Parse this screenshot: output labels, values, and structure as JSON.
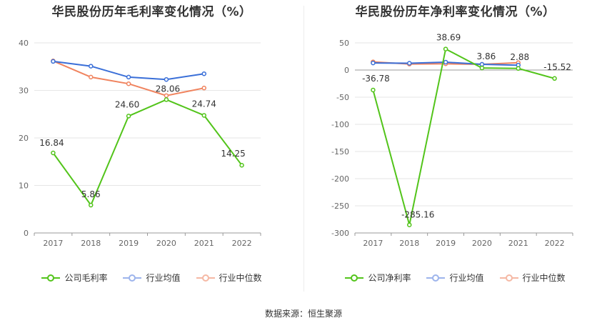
{
  "source_text": "数据来源：恒生聚源",
  "colors": {
    "company": "#52c41a",
    "industry_avg": "#3a6fd8",
    "industry_median": "#f0835e",
    "grid": "#e6e6e6",
    "axis": "#333333"
  },
  "legend_icons": [
    "line-circle-icon"
  ],
  "chart_data": [
    {
      "type": "line",
      "title": "华民股份历年毛利率变化情况（%）",
      "x": [
        "2017",
        "2018",
        "2019",
        "2020",
        "2021",
        "2022"
      ],
      "ylim": [
        0,
        40
      ],
      "yticks": [
        "0",
        "10",
        "20",
        "30",
        "40"
      ],
      "grid": true,
      "legend_position": "bottom",
      "series": [
        {
          "name": "公司毛利率",
          "key": "company",
          "values": [
            16.84,
            5.86,
            24.6,
            28.06,
            24.74,
            14.25
          ],
          "labels": [
            "16.84",
            "5.86",
            "24.60",
            "28.06",
            "24.74",
            "14.25"
          ]
        },
        {
          "name": "行业均值",
          "key": "industry_avg",
          "values": [
            36.1,
            35.1,
            32.8,
            32.3,
            33.5,
            null
          ]
        },
        {
          "name": "行业中位数",
          "key": "industry_median",
          "values": [
            36.2,
            32.8,
            31.4,
            28.9,
            30.5,
            null
          ]
        }
      ]
    },
    {
      "type": "line",
      "title": "华民股份历年净利率变化情况（%）",
      "x": [
        "2017",
        "2018",
        "2019",
        "2020",
        "2021",
        "2022"
      ],
      "ylim": [
        -300,
        50
      ],
      "yticks": [
        "50",
        "0",
        "-50",
        "-100",
        "-150",
        "-200",
        "-250",
        "-300"
      ],
      "grid": true,
      "legend_position": "bottom",
      "series": [
        {
          "name": "公司净利率",
          "key": "company",
          "values": [
            -36.78,
            -285.16,
            38.69,
            3.86,
            2.88,
            -15.52
          ],
          "labels": [
            "-36.78",
            "-285.16",
            "38.69",
            "3.86",
            "2.88",
            "-15.52"
          ]
        },
        {
          "name": "行业均值",
          "key": "industry_avg",
          "values": [
            13.0,
            12.5,
            14.5,
            10.5,
            9.0,
            null
          ]
        },
        {
          "name": "行业中位数",
          "key": "industry_median",
          "values": [
            15.0,
            11.0,
            11.5,
            10.5,
            13.5,
            null
          ]
        }
      ]
    }
  ]
}
